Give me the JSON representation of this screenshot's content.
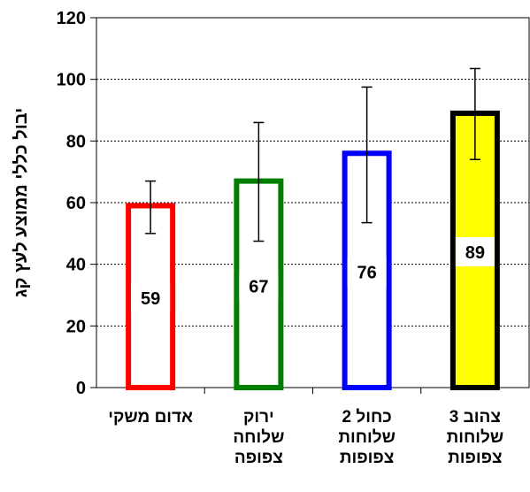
{
  "chart_data": {
    "type": "bar",
    "ylabel": "יבול כללי ממוצע לעץ קג",
    "ylim": [
      0,
      120
    ],
    "yticks": [
      0,
      20,
      40,
      60,
      80,
      100,
      120
    ],
    "grid": true,
    "categories": [
      [
        "אדום משקי"
      ],
      [
        "ירוק",
        "שלוחה",
        "צפופה"
      ],
      [
        "כחול 2",
        "שלוחות",
        "צפופות"
      ],
      [
        "צהוב 3",
        "שלוחות",
        "צפופות"
      ]
    ],
    "values": [
      59,
      67,
      76,
      89
    ],
    "error_low": [
      50,
      47.5,
      53.5,
      74
    ],
    "error_high": [
      67,
      86,
      97.5,
      103.5
    ],
    "data_labels": [
      "59",
      "67",
      "76",
      "89"
    ],
    "edge_colors": [
      "#ff0000",
      "#008000",
      "#0000ff",
      "#000000"
    ],
    "fill_colors": [
      "#ffffff",
      "#ffffff",
      "#ffffff",
      "#ffff00"
    ]
  }
}
